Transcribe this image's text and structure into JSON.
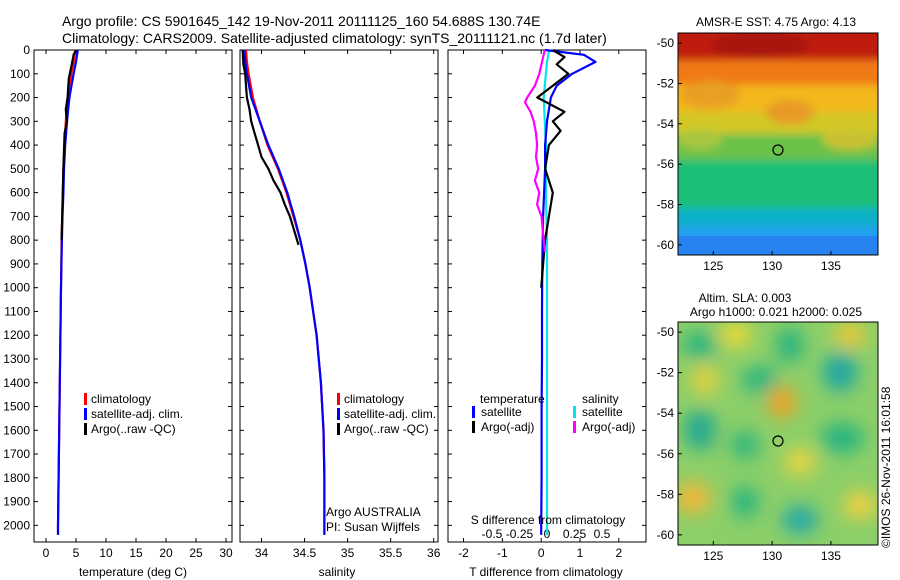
{
  "header": {
    "line1": "Argo profile: CS 5901645_142 19-Nov-2011 20111125_160 54.688S 130.74E",
    "line2": "Climatology: CARS2009. Satellite-adjusted climatology: synTS_20111121.nc (1.7d later)"
  },
  "footer_stamp": "©IMOS 26-Nov-2011 16:01:58",
  "colors": {
    "climatology": "#ff0000",
    "satellite": "#0000ff",
    "argo": "#000000",
    "salinity_satellite": "#00e5ee",
    "salinity_argo": "#ff00ff"
  },
  "chart_data": [
    {
      "type": "line",
      "xlabel": "temperature (deg C)",
      "ylabel": "",
      "xlim": [
        -2,
        31
      ],
      "ylim": [
        2070,
        0
      ],
      "xticks": [
        "0",
        "5",
        "10",
        "15",
        "20",
        "25",
        "30"
      ],
      "yticks": [
        "0",
        "100",
        "200",
        "300",
        "400",
        "500",
        "600",
        "700",
        "800",
        "900",
        "1000",
        "1100",
        "1200",
        "1300",
        "1400",
        "1500",
        "1600",
        "1700",
        "1800",
        "1900",
        "2000"
      ],
      "legend": {
        "position": "lower-right",
        "entries": [
          "climatology",
          "satellite-adj. clim.",
          "Argo(..raw -QC)"
        ]
      },
      "series": [
        {
          "name": "climatology",
          "y": [
            0,
            50,
            100,
            200,
            300,
            400,
            500,
            600,
            700,
            800,
            1000,
            1200,
            1400,
            1600,
            1800,
            2000,
            2040
          ],
          "x": [
            4.9,
            4.6,
            4.2,
            3.6,
            3.3,
            3.1,
            2.9,
            2.8,
            2.7,
            2.6,
            2.5,
            2.4,
            2.3,
            2.2,
            2.1,
            2.0,
            2.0
          ]
        },
        {
          "name": "satellite-adj. clim.",
          "y": [
            0,
            50,
            100,
            200,
            300,
            400,
            500,
            600,
            700,
            800,
            1000,
            1200,
            1400,
            1600,
            1800,
            2000,
            2040
          ],
          "x": [
            5.3,
            5.0,
            4.6,
            3.9,
            3.5,
            3.2,
            3.0,
            2.9,
            2.75,
            2.65,
            2.5,
            2.4,
            2.3,
            2.2,
            2.1,
            2.0,
            2.0
          ]
        },
        {
          "name": "Argo(..raw -QC)",
          "y": [
            0,
            20,
            60,
            120,
            200,
            250,
            300,
            350,
            420,
            500,
            600,
            700,
            800
          ],
          "x": [
            5.0,
            4.6,
            4.3,
            3.8,
            3.6,
            3.3,
            3.5,
            3.1,
            3.0,
            2.9,
            2.8,
            2.7,
            2.6
          ]
        }
      ]
    },
    {
      "type": "line",
      "xlabel": "salinity",
      "xlim": [
        33.75,
        36.05
      ],
      "ylim": [
        2070,
        0
      ],
      "xticks": [
        "34",
        "34.5",
        "35",
        "35.5",
        "36"
      ],
      "legend": {
        "position": "lower-right",
        "entries": [
          "climatology",
          "satellite-adj. clim.",
          "Argo(..raw -QC)"
        ]
      },
      "annotation": [
        "Argo AUSTRALIA",
        "PI: Susan Wijffels"
      ],
      "series": [
        {
          "name": "climatology",
          "y": [
            0,
            50,
            100,
            200,
            300,
            400,
            500,
            600,
            700,
            800,
            900,
            1000,
            1200,
            1400,
            1600,
            1800,
            2000,
            2040
          ],
          "x": [
            33.82,
            33.83,
            33.85,
            33.9,
            33.98,
            34.07,
            34.19,
            34.29,
            34.37,
            34.45,
            34.51,
            34.56,
            34.64,
            34.69,
            34.72,
            34.73,
            34.73,
            34.73
          ]
        },
        {
          "name": "satellite-adj. clim.",
          "y": [
            0,
            50,
            100,
            200,
            300,
            400,
            500,
            600,
            700,
            800,
            900,
            1000,
            1200,
            1400,
            1600,
            1800,
            2000,
            2040
          ],
          "x": [
            33.8,
            33.81,
            33.83,
            33.88,
            33.98,
            34.08,
            34.2,
            34.3,
            34.38,
            34.45,
            34.51,
            34.56,
            34.64,
            34.69,
            34.72,
            34.73,
            34.73,
            34.73
          ]
        },
        {
          "name": "Argo(..raw -QC)",
          "y": [
            0,
            60,
            100,
            150,
            200,
            250,
            300,
            350,
            400,
            450,
            500,
            550,
            600,
            650,
            700,
            760,
            820
          ],
          "x": [
            33.78,
            33.79,
            33.81,
            33.82,
            33.83,
            33.86,
            33.88,
            33.92,
            33.96,
            34.0,
            34.08,
            34.14,
            34.22,
            34.27,
            34.33,
            34.38,
            34.43
          ]
        }
      ]
    },
    {
      "type": "line",
      "xlabel": "T difference from climatology",
      "top_axis_label": "S difference from climatology",
      "xlim": [
        -2.4,
        2.7
      ],
      "ylim": [
        2070,
        0
      ],
      "xticks": [
        "-2",
        "-1",
        "0",
        "1",
        "2"
      ],
      "top_xticks": [
        "-0.5",
        "-0.25",
        "0",
        "0.25",
        "0.5"
      ],
      "legend": {
        "position": "lower",
        "temperature_title": "temperature",
        "salinity_title": "salinity",
        "entries": [
          "satellite",
          "Argo(-adj)",
          "satellite",
          "Argo(-adj)"
        ]
      },
      "series": [
        {
          "name": "temperature satellite",
          "y": [
            0,
            20,
            50,
            100,
            150,
            200,
            300,
            400,
            500,
            700,
            900,
            1100,
            1300,
            1500,
            1800,
            2000,
            2040
          ],
          "x": [
            0.1,
            1.1,
            1.4,
            0.8,
            0.4,
            0.25,
            0.15,
            0.1,
            0.1,
            0.05,
            0.03,
            0.02,
            0.02,
            0.01,
            0.01,
            0.0,
            0.0
          ]
        },
        {
          "name": "temperature Argo(-adj)",
          "y": [
            0,
            30,
            60,
            100,
            150,
            200,
            260,
            300,
            340,
            400,
            500,
            600,
            700,
            800,
            1000
          ],
          "x": [
            0.3,
            0.6,
            0.4,
            0.7,
            0.3,
            -0.1,
            0.6,
            0.3,
            0.5,
            0.2,
            0.1,
            0.3,
            0.2,
            0.1,
            0.0
          ]
        },
        {
          "name": "salinity satellite",
          "y": [
            0,
            50,
            100,
            200,
            300,
            400,
            600,
            800,
            1000,
            1200,
            1500,
            2000,
            2040
          ],
          "x": [
            0.02,
            0.0,
            -0.01,
            -0.03,
            -0.02,
            -0.01,
            -0.01,
            0.0,
            0.0,
            0.0,
            0.0,
            0.0,
            0.0
          ]
        },
        {
          "name": "salinity Argo(-adj)",
          "y": [
            0,
            60,
            100,
            150,
            200,
            220,
            260,
            300,
            350,
            400,
            450,
            500,
            550,
            600,
            650,
            700,
            750,
            800,
            850
          ],
          "x": [
            -0.02,
            -0.05,
            -0.07,
            -0.11,
            -0.18,
            -0.2,
            -0.15,
            -0.12,
            -0.1,
            -0.09,
            -0.1,
            -0.08,
            -0.11,
            -0.07,
            -0.09,
            -0.05,
            -0.04,
            -0.03,
            -0.02
          ]
        }
      ]
    },
    {
      "type": "heatmap",
      "title": "AMSR-E SST: 4.75  Argo: 4.13",
      "xlim": [
        122,
        139
      ],
      "ylim": [
        -60.5,
        -49.5
      ],
      "xticks": [
        "125",
        "130",
        "135"
      ],
      "yticks": [
        "-50",
        "-52",
        "-54",
        "-56",
        "-58",
        "-60"
      ],
      "marker": {
        "lon": 130.74,
        "lat": -54.688
      }
    },
    {
      "type": "heatmap",
      "title": "Altim. SLA: 0.003",
      "subtitle": "Argo h1000: 0.021 h2000: 0.025",
      "xlim": [
        122,
        139
      ],
      "ylim": [
        -60.5,
        -49.5
      ],
      "xticks": [
        "125",
        "130",
        "135"
      ],
      "yticks": [
        "-50",
        "-52",
        "-54",
        "-56",
        "-58",
        "-60"
      ],
      "marker": {
        "lon": 130.74,
        "lat": -54.688
      }
    }
  ]
}
